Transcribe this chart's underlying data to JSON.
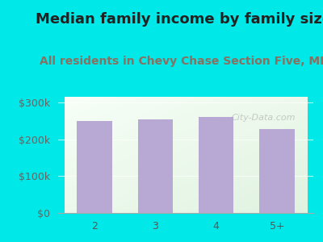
{
  "categories": [
    "2",
    "3",
    "4",
    "5+"
  ],
  "values": [
    250000,
    253000,
    260000,
    227000
  ],
  "bar_color": "#b8a9d4",
  "title": "Median family income by family size",
  "subtitle": "All residents in Chevy Chase Section Five, MD",
  "title_color": "#222222",
  "subtitle_color": "#8a7060",
  "ylabel_ticks": [
    0,
    100000,
    200000,
    300000
  ],
  "ylim": [
    0,
    315000
  ],
  "bg_outer": "#00e8e8",
  "title_fontsize": 13.0,
  "subtitle_fontsize": 10.0,
  "tick_fontsize": 9,
  "watermark": "City-Data.com"
}
